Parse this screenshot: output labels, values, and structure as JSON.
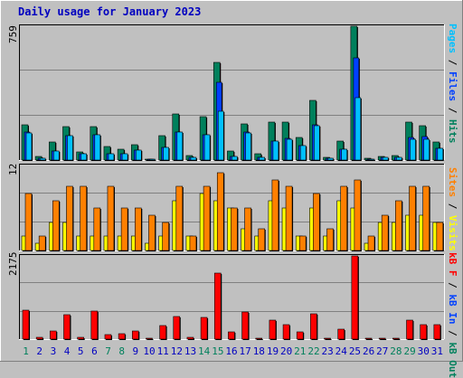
{
  "title": "Daily usage for January 2023",
  "colors": {
    "background": "#c0c0c0",
    "panel": "#c0c0c0",
    "hits": "#00805c",
    "files": "#0040ff",
    "pages": "#00c0ff",
    "visits": "#ffff00",
    "sites": "#ff8000",
    "kbytes": "#ff0000",
    "weekend_day": "#00805c",
    "weekday_day": "#0000c0"
  },
  "legends": {
    "top": [
      {
        "text": "Pages",
        "color": "#00c0ff"
      },
      {
        "text": " / ",
        "color": "#000000"
      },
      {
        "text": "Files",
        "color": "#0040ff"
      },
      {
        "text": " / ",
        "color": "#000000"
      },
      {
        "text": "Hits",
        "color": "#00805c"
      }
    ],
    "middle": [
      {
        "text": "Sites",
        "color": "#ff8000"
      },
      {
        "text": " / ",
        "color": "#000000"
      },
      {
        "text": "Visits",
        "color": "#ffff00"
      }
    ],
    "bottom": [
      {
        "text": "kB F",
        "color": "#ff0000"
      },
      {
        "text": " / ",
        "color": "#000000"
      },
      {
        "text": "kB In",
        "color": "#0040ff"
      },
      {
        "text": " / ",
        "color": "#000000"
      },
      {
        "text": "kB Out",
        "color": "#00805c"
      }
    ]
  },
  "chart_data": [
    {
      "type": "bar",
      "panel": "top",
      "ymax_label": "759",
      "ylim": [
        0,
        759
      ],
      "categories": [
        "1",
        "2",
        "3",
        "4",
        "5",
        "6",
        "7",
        "8",
        "9",
        "10",
        "11",
        "12",
        "13",
        "14",
        "15",
        "16",
        "17",
        "18",
        "19",
        "20",
        "21",
        "22",
        "23",
        "24",
        "25",
        "26",
        "27",
        "28",
        "29",
        "30",
        "31"
      ],
      "weekend": [
        1,
        7,
        8,
        14,
        15,
        21,
        22,
        28,
        29
      ],
      "series": [
        {
          "name": "Hits",
          "values": [
            200,
            20,
            105,
            192,
            48,
            190,
            75,
            62,
            88,
            5,
            140,
            260,
            25,
            248,
            555,
            50,
            205,
            35,
            215,
            215,
            130,
            340,
            15,
            110,
            760,
            8,
            20,
            25,
            215,
            195,
            105
          ]
        },
        {
          "name": "Files",
          "values": [
            160,
            12,
            50,
            140,
            35,
            145,
            35,
            35,
            55,
            3,
            70,
            160,
            15,
            145,
            440,
            20,
            160,
            15,
            110,
            125,
            80,
            200,
            8,
            60,
            580,
            5,
            15,
            15,
            128,
            135,
            65
          ]
        },
        {
          "name": "Pages",
          "values": [
            155,
            12,
            50,
            140,
            35,
            143,
            35,
            35,
            55,
            3,
            70,
            158,
            15,
            145,
            275,
            20,
            155,
            15,
            110,
            120,
            80,
            195,
            8,
            60,
            355,
            5,
            15,
            15,
            120,
            120,
            65
          ]
        }
      ]
    },
    {
      "type": "bar",
      "panel": "middle",
      "ymax_label": "12",
      "ylim": [
        0,
        12
      ],
      "categories": [
        "1",
        "2",
        "3",
        "4",
        "5",
        "6",
        "7",
        "8",
        "9",
        "10",
        "11",
        "12",
        "13",
        "14",
        "15",
        "16",
        "17",
        "18",
        "19",
        "20",
        "21",
        "22",
        "23",
        "24",
        "25",
        "26",
        "27",
        "28",
        "29",
        "30",
        "31"
      ],
      "series": [
        {
          "name": "Sites",
          "values": [
            8,
            2,
            7,
            9,
            9,
            6,
            9,
            6,
            6,
            5,
            4,
            9,
            2,
            9,
            11,
            6,
            6,
            3,
            10,
            9,
            2,
            8,
            3,
            9,
            10,
            2,
            5,
            7,
            9,
            9,
            4
          ]
        },
        {
          "name": "Visits",
          "values": [
            2,
            1,
            4,
            4,
            2,
            2,
            2,
            2,
            2,
            1,
            2,
            7,
            2,
            8,
            7,
            6,
            3,
            2,
            7,
            6,
            2,
            6,
            2,
            7,
            6,
            1,
            4,
            4,
            5,
            5,
            4
          ]
        }
      ]
    },
    {
      "type": "bar",
      "panel": "bottom",
      "ymax_label": "2175",
      "ylim": [
        0,
        2175
      ],
      "categories": [
        "1",
        "2",
        "3",
        "4",
        "5",
        "6",
        "7",
        "8",
        "9",
        "10",
        "11",
        "12",
        "13",
        "14",
        "15",
        "16",
        "17",
        "18",
        "19",
        "20",
        "21",
        "22",
        "23",
        "24",
        "25",
        "26",
        "27",
        "28",
        "29",
        "30",
        "31"
      ],
      "series": [
        {
          "name": "kB F",
          "values": [
            768,
            40,
            208,
            627,
            40,
            737,
            118,
            133,
            212,
            35,
            357,
            584,
            40,
            573,
            1718,
            180,
            720,
            10,
            497,
            377,
            180,
            668,
            10,
            253,
            2175,
            20,
            20,
            20,
            495,
            372,
            377
          ]
        }
      ]
    }
  ]
}
